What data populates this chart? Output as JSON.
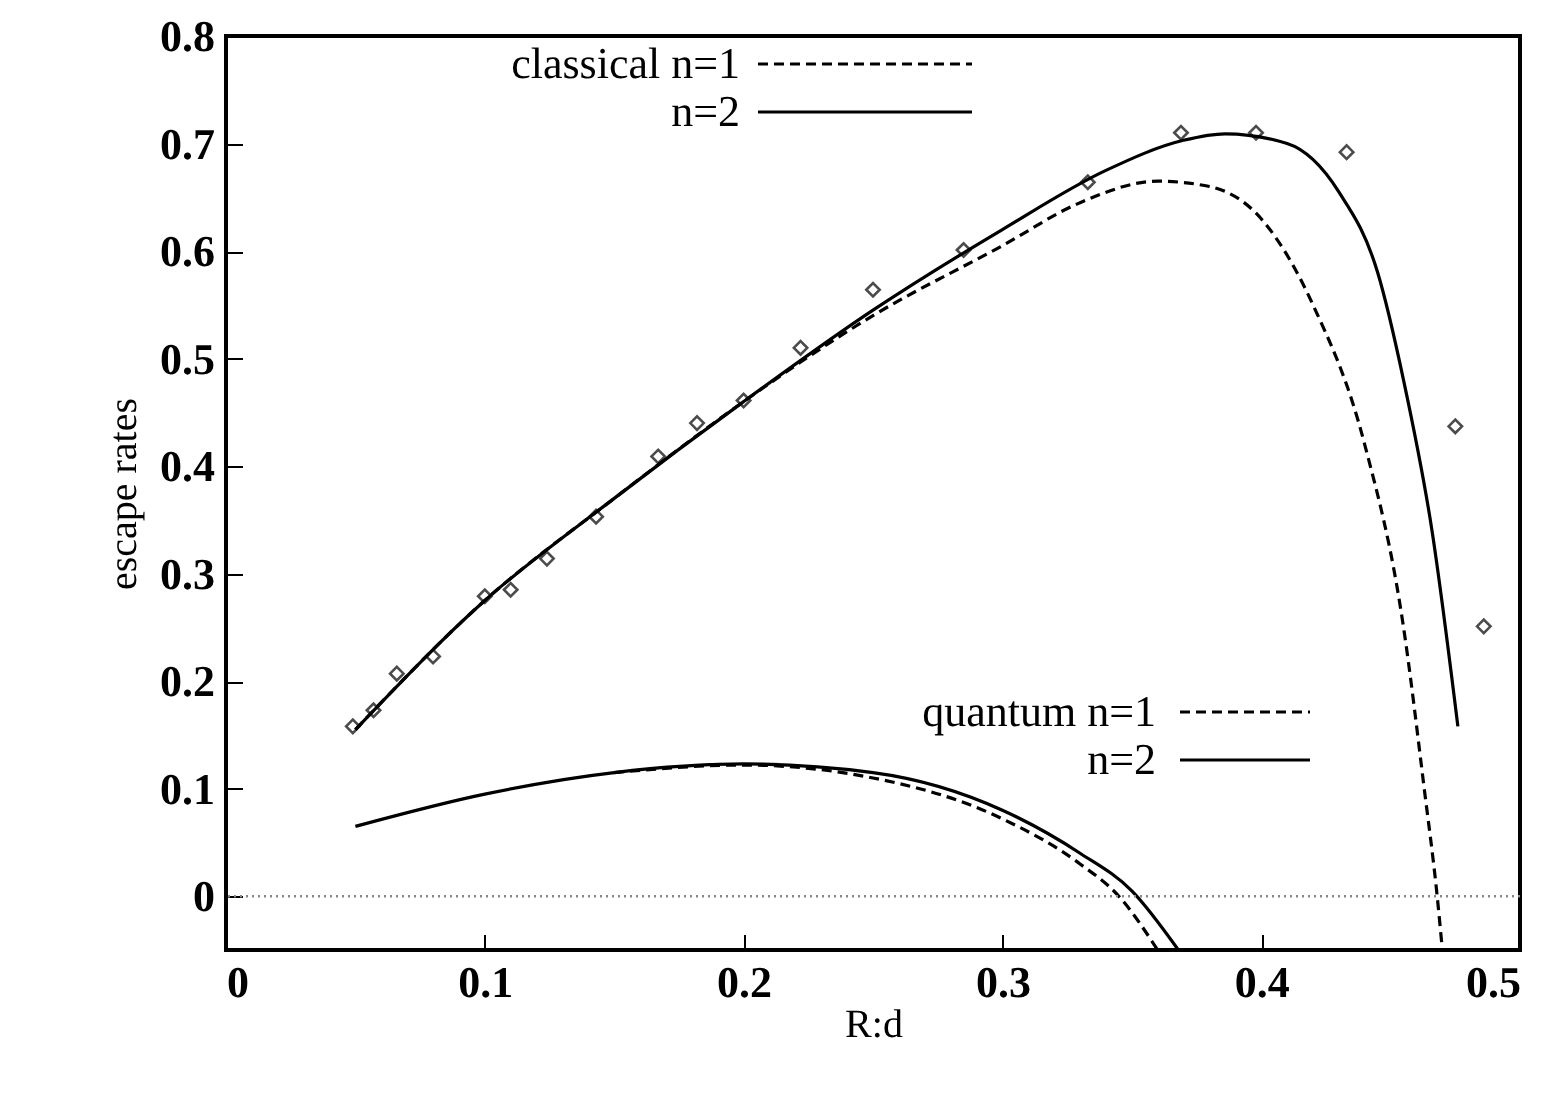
{
  "chart_data": {
    "type": "line",
    "xlabel": "R:d",
    "ylabel": "escape rates",
    "xlim": [
      0,
      0.5
    ],
    "ylim": [
      -0.05,
      0.8
    ],
    "xticks": [
      0,
      0.1,
      0.2,
      0.3,
      0.4,
      0.5
    ],
    "yticks": [
      0,
      0.1,
      0.2,
      0.3,
      0.4,
      0.5,
      0.6,
      0.7,
      0.8
    ],
    "grid": false,
    "legend": "top",
    "ref_lines": [
      {
        "axis": "y",
        "value": 0,
        "color": "#888888",
        "line_style": "dotted"
      }
    ],
    "series": [
      {
        "name": "classical n=1",
        "color": "#000000",
        "line_style": "dashed",
        "x": [
          0.05,
          0.1,
          0.15,
          0.2,
          0.25,
          0.3,
          0.33,
          0.36,
          0.38,
          0.4,
          0.42,
          0.44,
          0.455,
          0.463,
          0.468,
          0.47
        ],
        "values": [
          0.155,
          0.275,
          0.37,
          0.46,
          0.54,
          0.605,
          0.645,
          0.665,
          0.66,
          0.63,
          0.55,
          0.42,
          0.25,
          0.1,
          0.0,
          -0.05
        ]
      },
      {
        "name": "n=2",
        "color": "#000000",
        "line_style": "solid",
        "x": [
          0.05,
          0.1,
          0.15,
          0.2,
          0.25,
          0.3,
          0.34,
          0.37,
          0.386,
          0.41,
          0.43,
          0.445,
          0.455,
          0.466,
          0.476
        ],
        "values": [
          0.155,
          0.275,
          0.37,
          0.46,
          0.545,
          0.62,
          0.675,
          0.703,
          0.709,
          0.7,
          0.655,
          0.58,
          0.48,
          0.34,
          0.158
        ]
      },
      {
        "name": "quantum n=1",
        "color": "#000000",
        "line_style": "dashed",
        "x": [
          0.15,
          0.2,
          0.25,
          0.3,
          0.33,
          0.345,
          0.36
        ],
        "values": [
          0.115,
          0.122,
          0.11,
          0.072,
          0.03,
          0.0,
          -0.05
        ]
      },
      {
        "name": "n=2",
        "color": "#000000",
        "line_style": "solid",
        "x": [
          0.05,
          0.1,
          0.15,
          0.2,
          0.25,
          0.3,
          0.33,
          0.35,
          0.368
        ],
        "values": [
          0.065,
          0.095,
          0.115,
          0.123,
          0.115,
          0.08,
          0.04,
          0.005,
          -0.05
        ]
      },
      {
        "type": "scatter",
        "color": "#000000",
        "marker": "diamond",
        "x": [
          0.049,
          0.057,
          0.066,
          0.08,
          0.1,
          0.11,
          0.124,
          0.143,
          0.167,
          0.182,
          0.2,
          0.222,
          0.25,
          0.285,
          0.333,
          0.369,
          0.398,
          0.433,
          0.475,
          0.486
        ],
        "values": [
          0.158,
          0.173,
          0.207,
          0.223,
          0.279,
          0.285,
          0.314,
          0.353,
          0.409,
          0.44,
          0.461,
          0.51,
          0.564,
          0.601,
          0.664,
          0.71,
          0.71,
          0.692,
          0.437,
          0.251
        ]
      }
    ]
  }
}
